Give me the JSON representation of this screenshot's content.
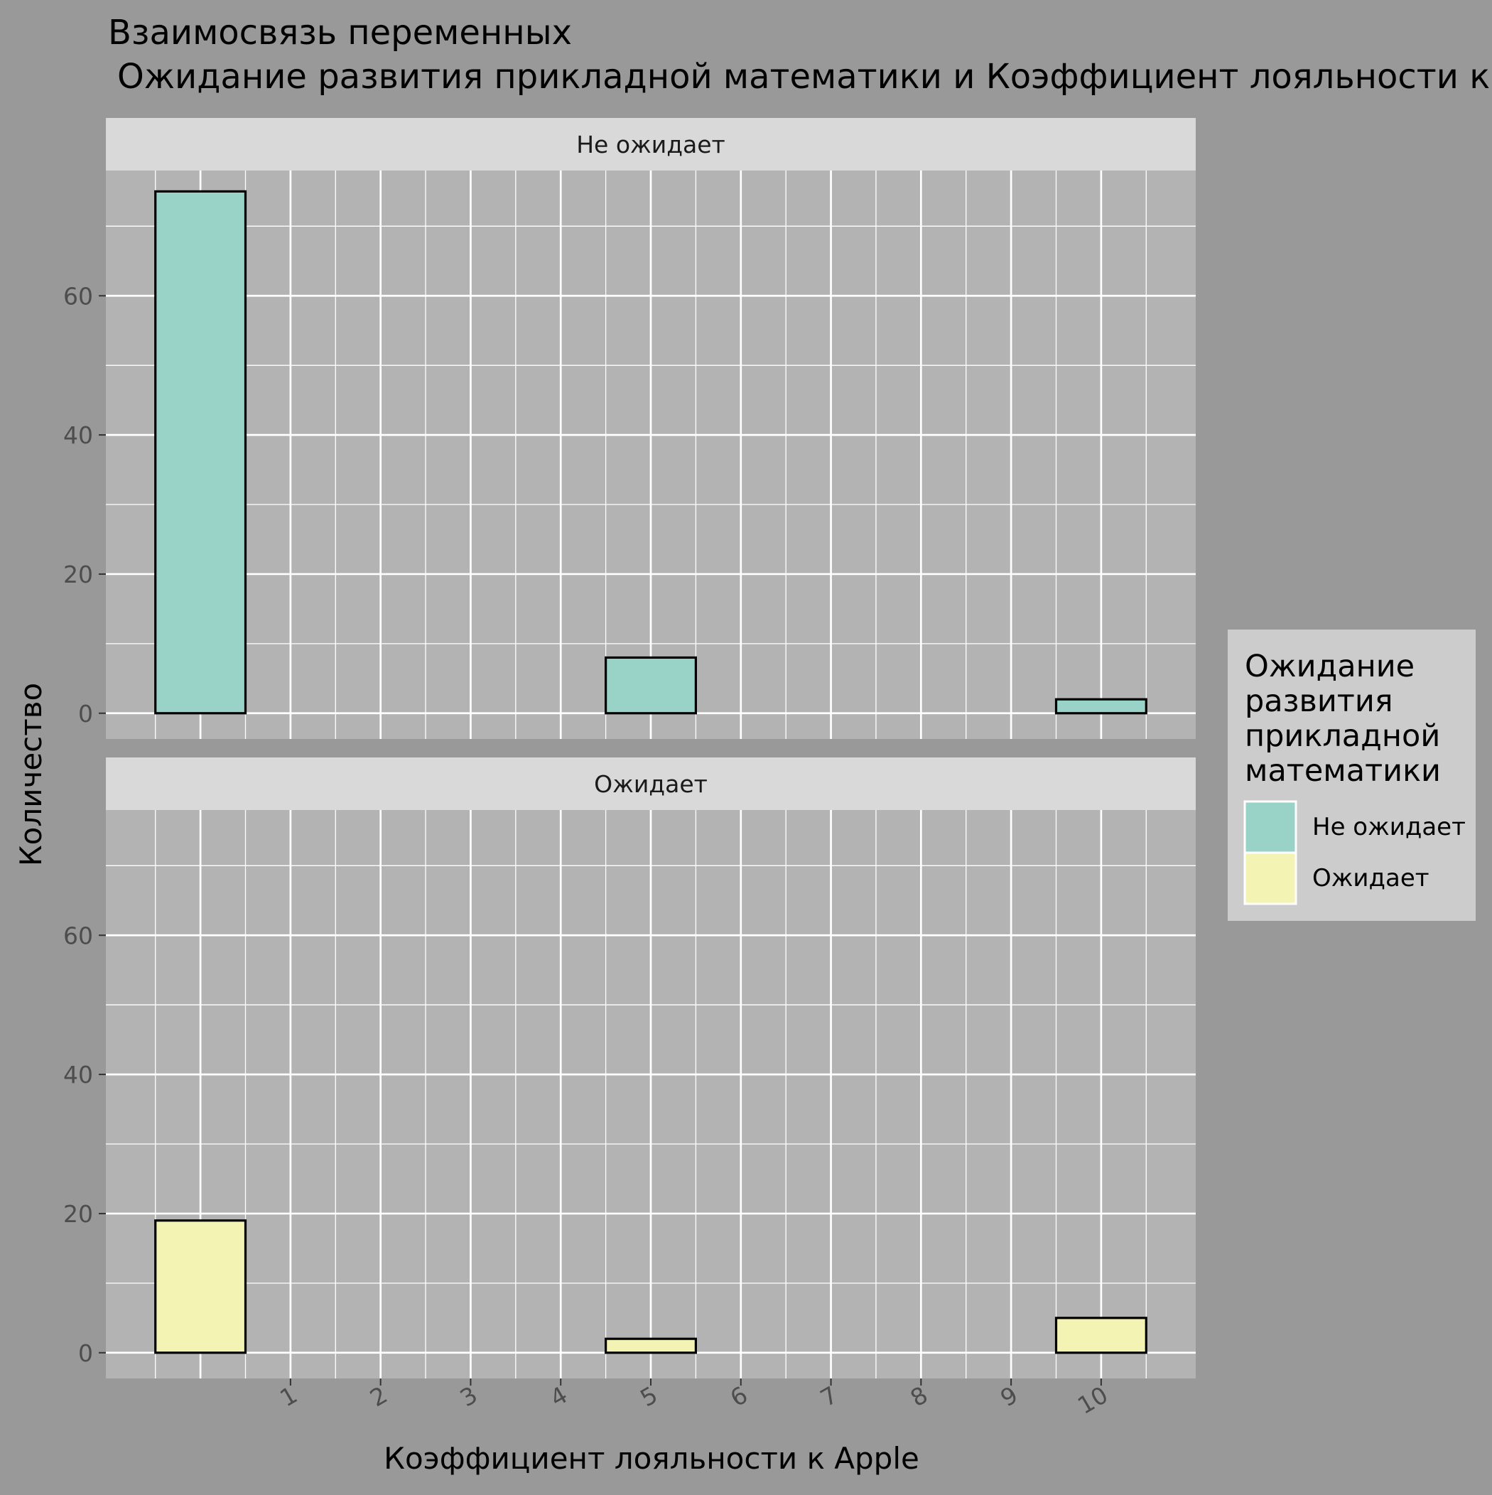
{
  "chart_data": {
    "type": "bar",
    "title": "Взаимосвязь переменных",
    "subtitle": "Ожидание развития прикладной математики и Коэффициент лояльности к Apple",
    "xlabel": "Коэффициент лояльности к Apple",
    "ylabel": "Количество",
    "x_ticks": [
      "1",
      "2",
      "3",
      "4",
      "5",
      "6",
      "7",
      "8",
      "9",
      "10"
    ],
    "y_ticks": [
      "0",
      "20",
      "40",
      "60"
    ],
    "xlim": [
      -1.05,
      11.05
    ],
    "ylim": [
      -3.7,
      78
    ],
    "bin_width": 1,
    "grid": true,
    "legend": {
      "title_lines": [
        "Ожидание",
        "развития",
        "прикладной",
        "математики"
      ],
      "placement": "right",
      "items": [
        {
          "label": "Не ожидает",
          "color": "#99d3c8"
        },
        {
          "label": "Ожидает",
          "color": "#f3f3b4"
        }
      ]
    },
    "panels": [
      {
        "label": "Не ожидает",
        "color": "#99d3c8",
        "bins": [
          {
            "x": 0,
            "count": 75
          },
          {
            "x": 1,
            "count": 0
          },
          {
            "x": 2,
            "count": 0
          },
          {
            "x": 3,
            "count": 0
          },
          {
            "x": 4,
            "count": 0
          },
          {
            "x": 5,
            "count": 8
          },
          {
            "x": 6,
            "count": 0
          },
          {
            "x": 7,
            "count": 0
          },
          {
            "x": 8,
            "count": 0
          },
          {
            "x": 9,
            "count": 0
          },
          {
            "x": 10,
            "count": 2
          }
        ]
      },
      {
        "label": "Ожидает",
        "color": "#f3f3b4",
        "bins": [
          {
            "x": 0,
            "count": 19
          },
          {
            "x": 1,
            "count": 0
          },
          {
            "x": 2,
            "count": 0
          },
          {
            "x": 3,
            "count": 0
          },
          {
            "x": 4,
            "count": 0
          },
          {
            "x": 5,
            "count": 2
          },
          {
            "x": 6,
            "count": 0
          },
          {
            "x": 7,
            "count": 0
          },
          {
            "x": 8,
            "count": 0
          },
          {
            "x": 9,
            "count": 0
          },
          {
            "x": 10,
            "count": 5
          }
        ]
      }
    ]
  }
}
